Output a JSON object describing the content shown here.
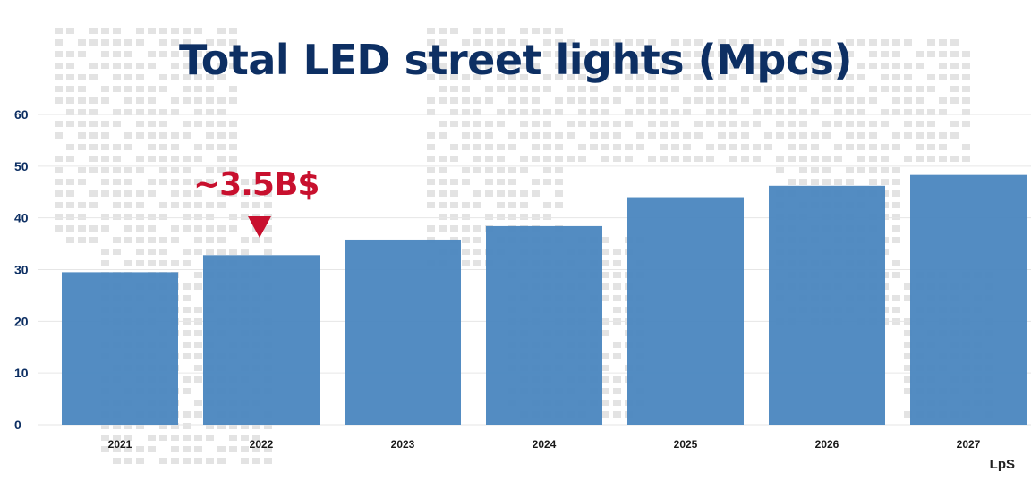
{
  "chart_data": {
    "type": "bar",
    "title": "Total LED street lights (Mpcs)",
    "categories": [
      "2021",
      "2022",
      "2023",
      "2024",
      "2025",
      "2026",
      "2027"
    ],
    "values": [
      29.5,
      32.8,
      35.8,
      38.4,
      44,
      46.2,
      48.3
    ],
    "ylim": [
      0,
      60
    ],
    "yticks": [
      "0",
      "10",
      "20",
      "30",
      "40",
      "50",
      "60"
    ],
    "grid": true,
    "annotations": [
      {
        "text": "~3.5B$",
        "category": "2022"
      }
    ]
  },
  "brand": "LpS",
  "colors": {
    "bar": "#4a86bf",
    "title": "#0d2f63",
    "annotation": "#c8102e",
    "dots": "#e3e3e3",
    "grid": "#e6e6e6"
  }
}
